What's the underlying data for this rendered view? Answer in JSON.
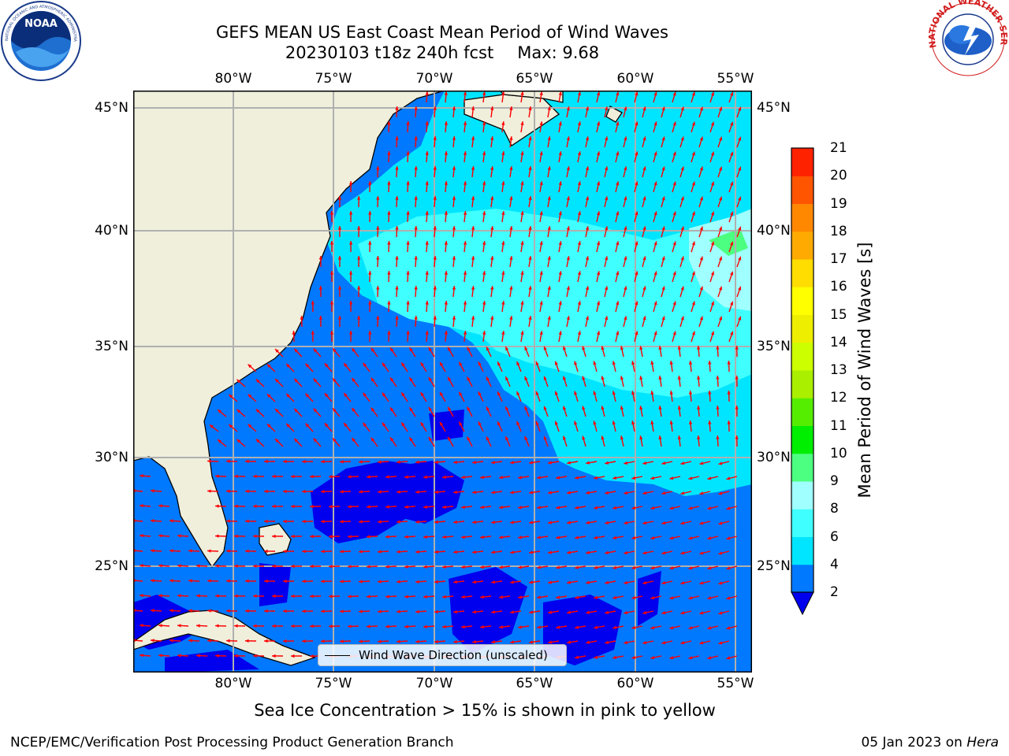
{
  "header": {
    "title_line1": "GEFS MEAN US East Coast Mean Period of Wind Waves",
    "title_run": "20230103 t18z 240h fcst",
    "title_max": "Max: 9.68"
  },
  "logos": {
    "left": "NOAA",
    "right": "NATIONAL WEATHER SERVICE",
    "left_ring_text": "NATIONAL OCEANIC AND ATMOSPHERIC ADMINISTRATION · U.S. DEPARTMENT OF COMMERCE"
  },
  "map": {
    "lon_labels": [
      "80°W",
      "75°W",
      "70°W",
      "65°W",
      "60°W",
      "55°W"
    ],
    "lat_labels": [
      "45°N",
      "40°N",
      "35°N",
      "30°N",
      "25°N"
    ],
    "legend": "Wind Wave Direction (unscaled)",
    "colors": {
      "land": "#efefdc",
      "arrows": "#ff0000",
      "grid": "#b0b0b0"
    }
  },
  "colorbar": {
    "label": "Mean Period of Wind Waves [s]",
    "ticks": [
      "2",
      "4",
      "6",
      "8",
      "9",
      "10",
      "11",
      "12",
      "13",
      "14",
      "15",
      "16",
      "17",
      "18",
      "19",
      "20",
      "21"
    ],
    "colors": [
      "#0079fe",
      "#00e5ff",
      "#40ffff",
      "#a0ffff",
      "#4dff80",
      "#00ee00",
      "#55ee00",
      "#aaee00",
      "#ccff00",
      "#eeee00",
      "#ffff00",
      "#ffdd00",
      "#ffaa00",
      "#ff8800",
      "#ff5500",
      "#ff2200"
    ],
    "under_color": "#0000ee"
  },
  "footer": {
    "note": "Sea Ice Concentration > 15% is shown in pink to yellow",
    "credit_left": "NCEP/EMC/Verification Post Processing Product Generation Branch",
    "credit_date": "05 Jan 2023 on",
    "credit_machine": "Hera"
  }
}
